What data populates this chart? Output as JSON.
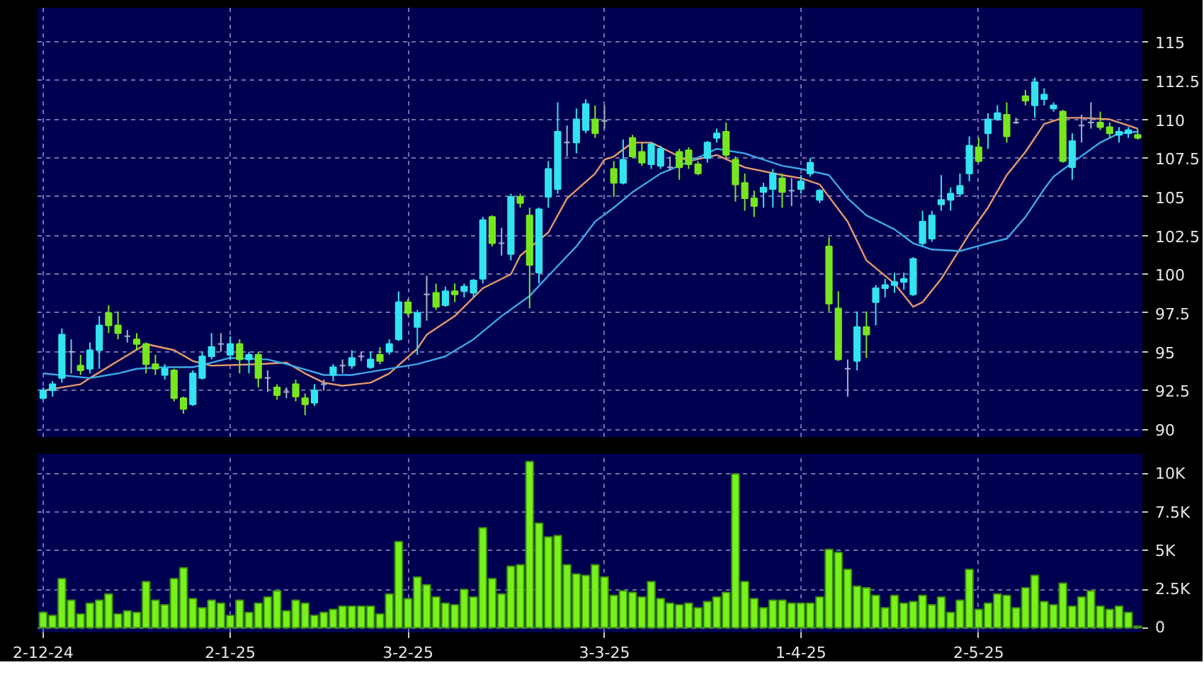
{
  "chart_data": [
    {
      "type": "candlestick",
      "categories": [
        null,
        null,
        null,
        null,
        null,
        null,
        null,
        null,
        null,
        null,
        null,
        null,
        null,
        null,
        null,
        null,
        null,
        null,
        null,
        null,
        null,
        null,
        null,
        null,
        null,
        null,
        null,
        null,
        null,
        null,
        null,
        null,
        null,
        null,
        null,
        null,
        null,
        null,
        null,
        null,
        null,
        null,
        null,
        null,
        null,
        null,
        null,
        null,
        null,
        null,
        null,
        null,
        null,
        null,
        null,
        null,
        null,
        null,
        null,
        null,
        null,
        null,
        null,
        null,
        null,
        null,
        null,
        null,
        null,
        null,
        null,
        null,
        null,
        null,
        null,
        null,
        null,
        null,
        null,
        null,
        null,
        null,
        null,
        null,
        null,
        null,
        null,
        null,
        null,
        null,
        null,
        null,
        null,
        null,
        null,
        null,
        null,
        null,
        null,
        null,
        null,
        null,
        null,
        null,
        null,
        null,
        null,
        null,
        null,
        null,
        null,
        null,
        null,
        null,
        null,
        null,
        null,
        null
      ],
      "ohlc": [
        [
          92.0,
          92.7,
          91.9,
          92.5
        ],
        [
          92.5,
          93.1,
          92.1,
          92.9
        ],
        [
          93.3,
          96.5,
          93.0,
          96.1
        ],
        [
          95.0,
          95.8,
          93.6,
          95.0
        ],
        [
          94.1,
          94.8,
          93.5,
          93.8
        ],
        [
          93.9,
          95.6,
          93.6,
          95.1
        ],
        [
          95.1,
          97.3,
          93.9,
          96.7
        ],
        [
          97.5,
          98.0,
          96.2,
          96.7
        ],
        [
          96.7,
          97.6,
          95.8,
          96.2
        ],
        [
          96.0,
          96.4,
          95.6,
          96.0
        ],
        [
          95.8,
          96.2,
          95.1,
          95.5
        ],
        [
          95.5,
          95.6,
          93.6,
          94.2
        ],
        [
          94.2,
          94.8,
          93.5,
          93.9
        ],
        [
          93.5,
          94.2,
          93.2,
          93.9
        ],
        [
          93.8,
          93.9,
          91.8,
          92.0
        ],
        [
          92.0,
          92.1,
          91.0,
          91.3
        ],
        [
          91.6,
          93.8,
          91.5,
          93.6
        ],
        [
          93.3,
          95.0,
          93.2,
          94.7
        ],
        [
          94.7,
          96.2,
          94.5,
          95.3
        ],
        [
          95.5,
          96.2,
          95.0,
          95.5
        ],
        [
          94.8,
          96.0,
          94.5,
          95.5
        ],
        [
          95.5,
          95.8,
          93.6,
          94.5
        ],
        [
          94.5,
          95.0,
          93.6,
          94.8
        ],
        [
          94.8,
          95.0,
          92.7,
          93.3
        ],
        [
          93.3,
          93.8,
          92.4,
          93.3
        ],
        [
          92.7,
          92.9,
          91.9,
          92.2
        ],
        [
          92.4,
          92.7,
          92.0,
          92.4
        ],
        [
          92.9,
          93.2,
          91.8,
          92.1
        ],
        [
          92.0,
          92.3,
          90.9,
          91.6
        ],
        [
          91.7,
          92.9,
          91.5,
          92.5
        ],
        [
          92.9,
          93.2,
          92.5,
          92.9
        ],
        [
          93.5,
          94.2,
          93.1,
          94.0
        ],
        [
          94.1,
          94.5,
          93.6,
          94.1
        ],
        [
          94.1,
          95.1,
          93.9,
          94.6
        ],
        [
          94.7,
          95.0,
          94.4,
          94.7
        ],
        [
          94.0,
          95.0,
          93.9,
          94.5
        ],
        [
          94.8,
          95.3,
          94.2,
          94.4
        ],
        [
          95.0,
          95.8,
          94.8,
          95.5
        ],
        [
          95.8,
          98.9,
          95.7,
          98.2
        ],
        [
          98.2,
          98.4,
          97.3,
          97.5
        ],
        [
          96.6,
          97.7,
          94.8,
          97.5
        ],
        [
          98.7,
          99.9,
          97.0,
          98.7
        ],
        [
          98.8,
          99.4,
          97.7,
          97.9
        ],
        [
          98.0,
          99.2,
          97.9,
          98.9
        ],
        [
          98.9,
          99.4,
          98.2,
          98.7
        ],
        [
          98.9,
          99.4,
          98.5,
          99.2
        ],
        [
          98.8,
          99.7,
          98.5,
          99.6
        ],
        [
          99.7,
          103.7,
          99.4,
          103.5
        ],
        [
          103.7,
          103.8,
          101.8,
          102.0
        ],
        [
          102.0,
          103.0,
          101.2,
          102.0
        ],
        [
          101.3,
          105.2,
          100.9,
          105.0
        ],
        [
          105.0,
          105.2,
          104.3,
          104.6
        ],
        [
          103.8,
          104.3,
          97.8,
          100.6
        ],
        [
          100.1,
          104.3,
          99.4,
          104.2
        ],
        [
          105.0,
          107.3,
          104.3,
          106.8
        ],
        [
          105.5,
          111.1,
          105.2,
          109.2
        ],
        [
          108.5,
          109.6,
          107.6,
          108.5
        ],
        [
          108.5,
          110.7,
          107.8,
          110.0
        ],
        [
          109.3,
          111.3,
          109.1,
          111.0
        ],
        [
          110.0,
          110.9,
          108.8,
          109.1
        ],
        [
          109.9,
          110.9,
          109.4,
          109.9
        ],
        [
          106.8,
          107.3,
          105.0,
          105.9
        ],
        [
          105.9,
          108.7,
          105.8,
          107.4
        ],
        [
          108.8,
          109.0,
          107.5,
          107.6
        ],
        [
          107.9,
          108.5,
          107.0,
          107.2
        ],
        [
          107.1,
          108.5,
          106.8,
          108.4
        ],
        [
          107.0,
          108.3,
          106.8,
          108.1
        ],
        [
          106.9,
          107.6,
          106.7,
          106.9
        ],
        [
          107.9,
          108.1,
          106.1,
          106.9
        ],
        [
          108.0,
          108.2,
          106.8,
          107.1
        ],
        [
          107.1,
          107.3,
          106.4,
          106.5
        ],
        [
          107.5,
          108.6,
          107.2,
          108.5
        ],
        [
          108.8,
          109.4,
          108.5,
          109.1
        ],
        [
          109.2,
          109.8,
          107.5,
          107.7
        ],
        [
          107.4,
          107.6,
          104.7,
          105.8
        ],
        [
          105.9,
          106.5,
          104.1,
          104.9
        ],
        [
          104.9,
          105.4,
          103.7,
          104.4
        ],
        [
          105.3,
          105.9,
          104.3,
          105.6
        ],
        [
          105.5,
          106.8,
          104.3,
          106.5
        ],
        [
          106.2,
          106.5,
          104.3,
          105.3
        ],
        [
          105.4,
          106.2,
          104.4,
          105.4
        ],
        [
          105.5,
          106.4,
          105.2,
          106.0
        ],
        [
          106.5,
          107.5,
          106.3,
          107.2
        ],
        [
          104.8,
          105.5,
          104.6,
          105.4
        ],
        [
          101.8,
          102.4,
          97.6,
          98.1
        ],
        [
          97.8,
          98.9,
          94.4,
          94.5
        ],
        [
          93.9,
          94.5,
          92.1,
          93.9
        ],
        [
          94.4,
          97.6,
          93.8,
          96.6
        ],
        [
          96.6,
          97.6,
          94.6,
          96.1
        ],
        [
          98.2,
          99.3,
          96.7,
          99.1
        ],
        [
          99.1,
          99.7,
          98.5,
          99.3
        ],
        [
          99.3,
          100.1,
          98.8,
          99.5
        ],
        [
          99.5,
          100.1,
          99.0,
          99.7
        ],
        [
          98.7,
          101.1,
          98.6,
          101.0
        ],
        [
          102.0,
          104.1,
          101.8,
          103.4
        ],
        [
          102.3,
          104.1,
          102.1,
          103.8
        ],
        [
          104.5,
          106.4,
          104.1,
          104.8
        ],
        [
          104.8,
          105.6,
          104.1,
          105.2
        ],
        [
          105.2,
          106.5,
          105.0,
          105.7
        ],
        [
          106.5,
          108.9,
          106.0,
          108.3
        ],
        [
          108.2,
          108.8,
          107.2,
          107.3
        ],
        [
          109.1,
          110.4,
          108.1,
          110.0
        ],
        [
          110.0,
          110.9,
          109.9,
          110.4
        ],
        [
          110.3,
          111.1,
          108.5,
          108.9
        ],
        [
          109.8,
          110.1,
          109.7,
          109.8
        ],
        [
          111.5,
          111.9,
          110.9,
          111.2
        ],
        [
          110.9,
          112.7,
          110.1,
          112.4
        ],
        [
          111.3,
          112.0,
          110.9,
          111.6
        ],
        [
          110.7,
          111.1,
          110.5,
          110.9
        ],
        [
          110.5,
          110.6,
          107.2,
          107.3
        ],
        [
          106.9,
          109.1,
          106.1,
          108.6
        ],
        [
          109.6,
          110.3,
          108.5,
          109.6
        ],
        [
          109.8,
          111.1,
          109.4,
          109.8
        ],
        [
          109.8,
          110.5,
          109.3,
          109.5
        ],
        [
          109.5,
          109.8,
          108.8,
          109.1
        ],
        [
          109.0,
          109.5,
          108.5,
          109.2
        ],
        [
          109.1,
          109.5,
          108.8,
          109.3
        ],
        [
          109.0,
          109.4,
          108.7,
          108.8
        ]
      ],
      "colors": [
        "#33e3f0",
        "#33e3f0",
        "#33e3f0",
        "#a0b4c8",
        "#78e61e",
        "#33e3f0",
        "#33e3f0",
        "#78e61e",
        "#78e61e",
        "#a0b4c8",
        "#78e61e",
        "#78e61e",
        "#78e61e",
        "#33e3f0",
        "#78e61e",
        "#78e61e",
        "#33e3f0",
        "#33e3f0",
        "#33e3f0",
        "#a0b4c8",
        "#33e3f0",
        "#78e61e",
        "#33e3f0",
        "#78e61e",
        "#a0b4c8",
        "#78e61e",
        "#a0b4c8",
        "#78e61e",
        "#78e61e",
        "#33e3f0",
        "#a0b4c8",
        "#33e3f0",
        "#a0b4c8",
        "#33e3f0",
        "#a0b4c8",
        "#33e3f0",
        "#78e61e",
        "#33e3f0",
        "#33e3f0",
        "#78e61e",
        "#33e3f0",
        "#a0b4c8",
        "#78e61e",
        "#33e3f0",
        "#78e61e",
        "#33e3f0",
        "#33e3f0",
        "#33e3f0",
        "#78e61e",
        "#a0b4c8",
        "#33e3f0",
        "#78e61e",
        "#78e61e",
        "#33e3f0",
        "#33e3f0",
        "#33e3f0",
        "#a0b4c8",
        "#33e3f0",
        "#33e3f0",
        "#78e61e",
        "#a0b4c8",
        "#78e61e",
        "#33e3f0",
        "#78e61e",
        "#78e61e",
        "#33e3f0",
        "#33e3f0",
        "#a0b4c8",
        "#78e61e",
        "#78e61e",
        "#78e61e",
        "#33e3f0",
        "#33e3f0",
        "#78e61e",
        "#78e61e",
        "#78e61e",
        "#78e61e",
        "#33e3f0",
        "#33e3f0",
        "#78e61e",
        "#a0b4c8",
        "#33e3f0",
        "#33e3f0",
        "#33e3f0",
        "#78e61e",
        "#78e61e",
        "#a0b4c8",
        "#33e3f0",
        "#78e61e",
        "#33e3f0",
        "#33e3f0",
        "#33e3f0",
        "#33e3f0",
        "#33e3f0",
        "#33e3f0",
        "#33e3f0",
        "#33e3f0",
        "#33e3f0",
        "#33e3f0",
        "#33e3f0",
        "#78e61e",
        "#33e3f0",
        "#33e3f0",
        "#78e61e",
        "#a0b4c8",
        "#78e61e",
        "#33e3f0",
        "#33e3f0",
        "#33e3f0",
        "#78e61e",
        "#33e3f0",
        "#a0b4c8",
        "#a0b4c8",
        "#78e61e",
        "#78e61e",
        "#33e3f0",
        "#33e3f0",
        "#78e61e"
      ],
      "series": [
        {
          "type": "line",
          "color": "#e89a6c",
          "values": [
            92.5,
            null,
            null,
            null,
            92.9,
            93.3,
            null,
            null,
            94.4,
            null,
            null,
            95.5,
            null,
            null,
            95.1,
            null,
            94.4,
            null,
            94.1,
            null,
            null,
            null,
            null,
            94.2,
            null,
            null,
            94.3,
            null,
            93.6,
            null,
            93.0,
            null,
            92.8,
            null,
            null,
            93.0,
            null,
            93.6,
            null,
            null,
            95.2,
            96.1,
            null,
            null,
            97.3,
            null,
            null,
            99.1,
            null,
            null,
            100.0,
            101.2,
            null,
            null,
            102.7,
            null,
            104.9,
            null,
            null,
            106.5,
            107.4,
            107.6,
            null,
            108.5,
            null,
            108.5,
            null,
            107.9,
            null,
            107.3,
            null,
            null,
            107.7,
            null,
            null,
            106.9,
            null,
            null,
            null,
            106.4,
            null,
            106.2,
            null,
            105.8,
            null,
            null,
            103.4,
            null,
            100.9,
            null,
            null,
            99.4,
            null,
            97.9,
            98.2,
            null,
            99.7,
            null,
            null,
            102.6,
            null,
            104.3,
            null,
            106.4,
            null,
            107.9,
            null,
            109.7,
            null,
            110.1,
            null,
            110.1,
            null,
            null,
            110.0,
            null,
            null,
            109.4
          ]
        },
        {
          "type": "line",
          "color": "#3ea8e8",
          "values": [
            93.6,
            null,
            null,
            null,
            null,
            93.3,
            null,
            null,
            93.6,
            null,
            93.9,
            null,
            null,
            94.0,
            null,
            null,
            94.0,
            null,
            null,
            null,
            94.6,
            null,
            null,
            null,
            94.5,
            null,
            94.2,
            null,
            null,
            null,
            93.5,
            null,
            null,
            93.5,
            null,
            null,
            93.8,
            null,
            null,
            null,
            94.2,
            null,
            null,
            94.7,
            null,
            null,
            95.8,
            null,
            null,
            97.3,
            null,
            null,
            98.6,
            null,
            99.9,
            null,
            null,
            101.8,
            null,
            103.4,
            null,
            104.3,
            null,
            105.3,
            null,
            null,
            106.5,
            null,
            107.0,
            null,
            null,
            107.8,
            108.1,
            null,
            null,
            107.8,
            null,
            null,
            null,
            107.0,
            null,
            106.8,
            null,
            null,
            106.4,
            null,
            104.9,
            null,
            103.8,
            null,
            null,
            102.9,
            null,
            102.0,
            null,
            101.6,
            null,
            null,
            101.5,
            null,
            null,
            102.0,
            null,
            102.3,
            null,
            103.7,
            null,
            105.5,
            106.3,
            null,
            107.2,
            null,
            null,
            108.5,
            null,
            109.1,
            null,
            109.2
          ]
        }
      ],
      "ylim": [
        89.5,
        117.2
      ],
      "yticks": [
        90,
        92.5,
        95,
        97.5,
        100,
        102.5,
        105,
        107.5,
        110,
        112.5,
        115
      ],
      "grid": true,
      "tick_labels": "y"
    },
    {
      "type": "bar",
      "color": "#77f21a",
      "categories": [
        "2-12-24",
        null,
        null,
        null,
        null,
        null,
        null,
        null,
        null,
        null,
        null,
        null,
        null,
        null,
        null,
        null,
        null,
        null,
        null,
        null,
        "2-1-25",
        null,
        null,
        null,
        null,
        null,
        null,
        null,
        null,
        null,
        null,
        null,
        null,
        null,
        null,
        null,
        null,
        null,
        null,
        "3-2-25",
        null,
        null,
        null,
        null,
        null,
        null,
        null,
        null,
        null,
        null,
        null,
        null,
        null,
        null,
        null,
        null,
        null,
        null,
        null,
        null,
        "3-3-25",
        null,
        null,
        null,
        null,
        null,
        null,
        null,
        null,
        null,
        null,
        null,
        null,
        null,
        null,
        null,
        null,
        null,
        null,
        null,
        null,
        "1-4-25",
        null,
        null,
        null,
        null,
        null,
        null,
        null,
        null,
        null,
        null,
        null,
        null,
        null,
        null,
        null,
        null,
        null,
        null,
        "2-5-25",
        null,
        null,
        null,
        null,
        null,
        null,
        null,
        null,
        null,
        null,
        null,
        null,
        null,
        null,
        null,
        null,
        null
      ],
      "values": [
        1.0,
        0.8,
        3.2,
        1.8,
        0.9,
        1.6,
        1.8,
        2.2,
        0.9,
        1.1,
        1.0,
        3.0,
        1.8,
        1.5,
        3.2,
        3.9,
        1.9,
        1.3,
        1.8,
        1.6,
        0.8,
        1.8,
        1.0,
        1.6,
        2.0,
        2.4,
        1.1,
        1.8,
        1.6,
        0.8,
        1.0,
        1.2,
        1.4,
        1.4,
        1.4,
        1.4,
        0.9,
        2.2,
        5.6,
        1.9,
        3.3,
        2.8,
        2.0,
        1.6,
        1.5,
        2.5,
        2.0,
        6.5,
        3.2,
        2.2,
        4.0,
        4.1,
        10.8,
        6.8,
        5.9,
        6.0,
        4.1,
        3.5,
        3.4,
        4.1,
        3.3,
        2.1,
        2.4,
        2.3,
        2.0,
        3.0,
        1.9,
        1.6,
        1.5,
        1.6,
        1.3,
        1.7,
        2.0,
        2.3,
        10.0,
        3.0,
        1.9,
        1.3,
        1.8,
        1.8,
        1.6,
        1.6,
        1.6,
        2.0,
        5.1,
        4.9,
        3.8,
        2.7,
        2.6,
        2.1,
        1.3,
        2.1,
        1.6,
        1.7,
        2.1,
        1.5,
        2.0,
        1.0,
        1.8,
        3.8,
        1.2,
        1.6,
        2.2,
        2.1,
        1.3,
        2.6,
        3.4,
        1.7,
        1.5,
        2.9,
        1.4,
        2.0,
        2.4,
        1.4,
        1.2,
        1.4,
        1.0,
        0.1
      ],
      "ylim": [
        -0.3,
        11.3
      ],
      "yticks": [
        0,
        {
          "value": 2.5,
          "label": "2.5K"
        },
        {
          "value": 5,
          "label": "5K"
        },
        {
          "value": 7.5,
          "label": "7.5K"
        },
        {
          "value": 10,
          "label": "10K"
        }
      ],
      "grid": true
    }
  ]
}
